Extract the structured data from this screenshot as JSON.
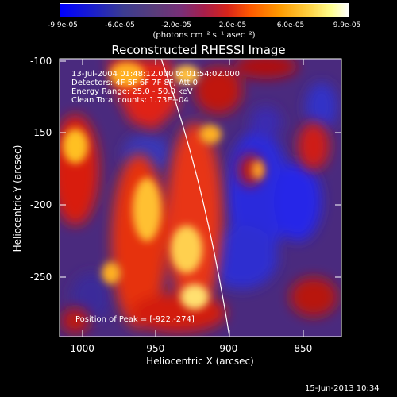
{
  "colorbar": {
    "ticks": [
      "-9.9e-05",
      "-6.0e-05",
      "-2.0e-05",
      "2.0e-05",
      "6.0e-05",
      "9.9e-05"
    ],
    "unit": "(photons cm⁻² s⁻¹ asec⁻²)"
  },
  "title": "Reconstructed RHESSI Image",
  "info": {
    "time": "13-Jul-2004 01:48:12.000 to 01:54:02.000",
    "detectors": "Detectors: 4F 5F 6F 7F 8F, Att 0",
    "energy": "Energy Range: 25.0 - 50.0 keV",
    "clean": "Clean     Total counts: 1.73E+04"
  },
  "peak": "Position of Peak = [-922,-274]",
  "axes": {
    "xlabel": "Heliocentric X (arcsec)",
    "ylabel": "Heliocentric Y (arcsec)",
    "xticks": [
      "-1000",
      "-950",
      "-900",
      "-850"
    ],
    "yticks": [
      "-100",
      "-150",
      "-200",
      "-250"
    ]
  },
  "datestamp": "15-Jun-2013 10:34",
  "chart_data": {
    "type": "heatmap",
    "title": "Reconstructed RHESSI Image",
    "xlabel": "Heliocentric X (arcsec)",
    "ylabel": "Heliocentric Y (arcsec)",
    "xlim": [
      -1018,
      -827
    ],
    "ylim": [
      -290,
      -97
    ],
    "colorbar_range": [
      -9.9e-05,
      9.9e-05
    ],
    "colorbar_ticks": [
      -9.9e-05,
      -6e-05,
      -2e-05,
      2e-05,
      6e-05,
      9.9e-05
    ],
    "peak": [
      -922,
      -274
    ],
    "limb_visible": true
  },
  "colors": {
    "background": "#000000",
    "low": "#0000ff",
    "mid": "#7a2f78",
    "high": "#ff9a00",
    "max": "#ffffff"
  }
}
